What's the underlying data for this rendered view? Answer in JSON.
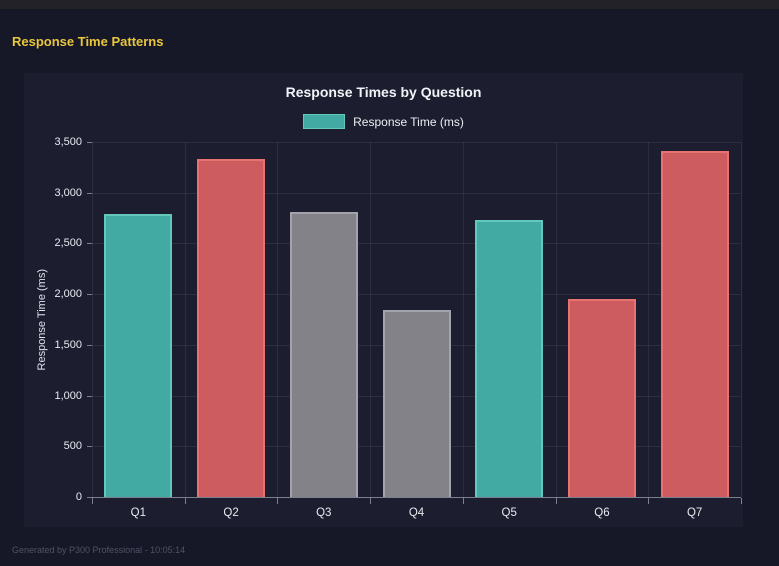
{
  "page": {
    "title": "Response Time Patterns",
    "footer": "Generated by P300 Professional - 10:05:14"
  },
  "chart_data": {
    "type": "bar",
    "title": "Response Times by Question",
    "categories": [
      "Q1",
      "Q2",
      "Q3",
      "Q4",
      "Q5",
      "Q6",
      "Q7"
    ],
    "values": [
      2795,
      3330,
      2810,
      1845,
      2730,
      1950,
      3410
    ],
    "bar_colors": [
      "teal",
      "red",
      "gray",
      "gray",
      "teal",
      "red",
      "red"
    ],
    "palette": {
      "teal": {
        "fill": "#42aaa3",
        "border": "#64c8bd"
      },
      "red": {
        "fill": "#cd5c61",
        "border": "#e7726f"
      },
      "gray": {
        "fill": "#828288",
        "border": "#a2a3ab"
      }
    },
    "legend_label": "Response Time (ms)",
    "legend_position": "top",
    "ylabel": "Response Time (ms)",
    "xlabel": "",
    "ylim": [
      0,
      3500
    ],
    "ytick_step": 500,
    "grid": true,
    "background": "#1c1e30",
    "accent_title_color": "#e8c63e"
  }
}
